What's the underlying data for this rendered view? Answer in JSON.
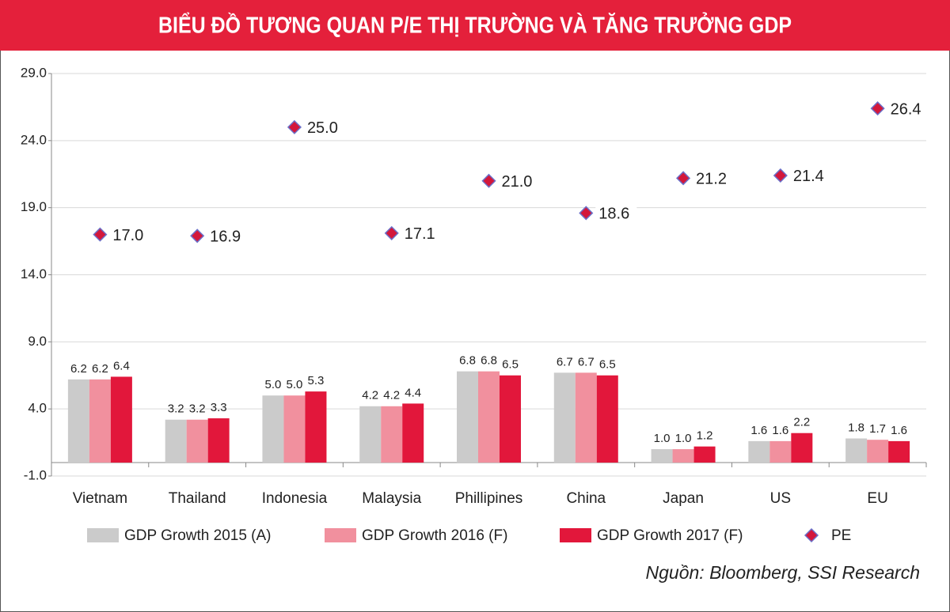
{
  "chart_data": {
    "type": "bar",
    "title": "BIỂU ĐỒ TƯƠNG QUAN P/E THỊ TRƯỜNG VÀ TĂNG TRƯỞNG GDP",
    "source": "Nguồn: Bloomberg, SSI Research",
    "categories": [
      "Vietnam",
      "Thailand",
      "Indonesia",
      "Malaysia",
      "Phillipines",
      "China",
      "Japan",
      "US",
      "EU"
    ],
    "series": [
      {
        "name": "GDP Growth 2015 (A)",
        "type": "bar",
        "color": "#cbcbcb",
        "values": [
          6.2,
          3.2,
          5.0,
          4.2,
          6.8,
          6.7,
          1.0,
          1.6,
          1.8
        ],
        "value_labels": [
          "6.2",
          "3.2",
          "5.0",
          "4.2",
          "6.8",
          "6.7",
          "1.0",
          "1.6",
          "1.8"
        ]
      },
      {
        "name": "GDP Growth 2016 (F)",
        "type": "bar",
        "color": "#f1909e",
        "values": [
          6.2,
          3.2,
          5.0,
          4.2,
          6.8,
          6.7,
          1.0,
          1.6,
          1.7
        ],
        "value_labels": [
          "6.2",
          "3.2",
          "5.0",
          "4.2",
          "6.8",
          "6.7",
          "1.0",
          "1.6",
          "1.7"
        ]
      },
      {
        "name": "GDP Growth 2017 (F)",
        "type": "bar",
        "color": "#e2173b",
        "values": [
          6.4,
          3.3,
          5.3,
          4.4,
          6.5,
          6.5,
          1.2,
          2.2,
          1.6
        ],
        "value_labels": [
          "6.4",
          "3.3",
          "5.3",
          "4.4",
          "6.5",
          "6.5",
          "1.2",
          "2.2",
          "1.6"
        ]
      },
      {
        "name": "PE",
        "type": "scatter",
        "color": "#d3173b",
        "values": [
          17.0,
          16.9,
          25.0,
          17.1,
          21.0,
          18.6,
          21.2,
          21.4,
          26.4
        ],
        "value_labels": [
          "17.0",
          "16.9",
          "25.0",
          "17.1",
          "21.0",
          "18.6",
          "21.2",
          "21.4",
          "26.4"
        ]
      }
    ],
    "ylim": [
      -1,
      29
    ],
    "yticks": [
      {
        "value": -1,
        "label": "-1.0"
      },
      {
        "value": 4,
        "label": "4.0"
      },
      {
        "value": 9,
        "label": "9.0"
      },
      {
        "value": 14,
        "label": "14.0"
      },
      {
        "value": 19,
        "label": "19.0"
      },
      {
        "value": 24,
        "label": "24.0"
      },
      {
        "value": 29,
        "label": "29.0"
      }
    ],
    "grid": true,
    "legend": "bottom"
  }
}
